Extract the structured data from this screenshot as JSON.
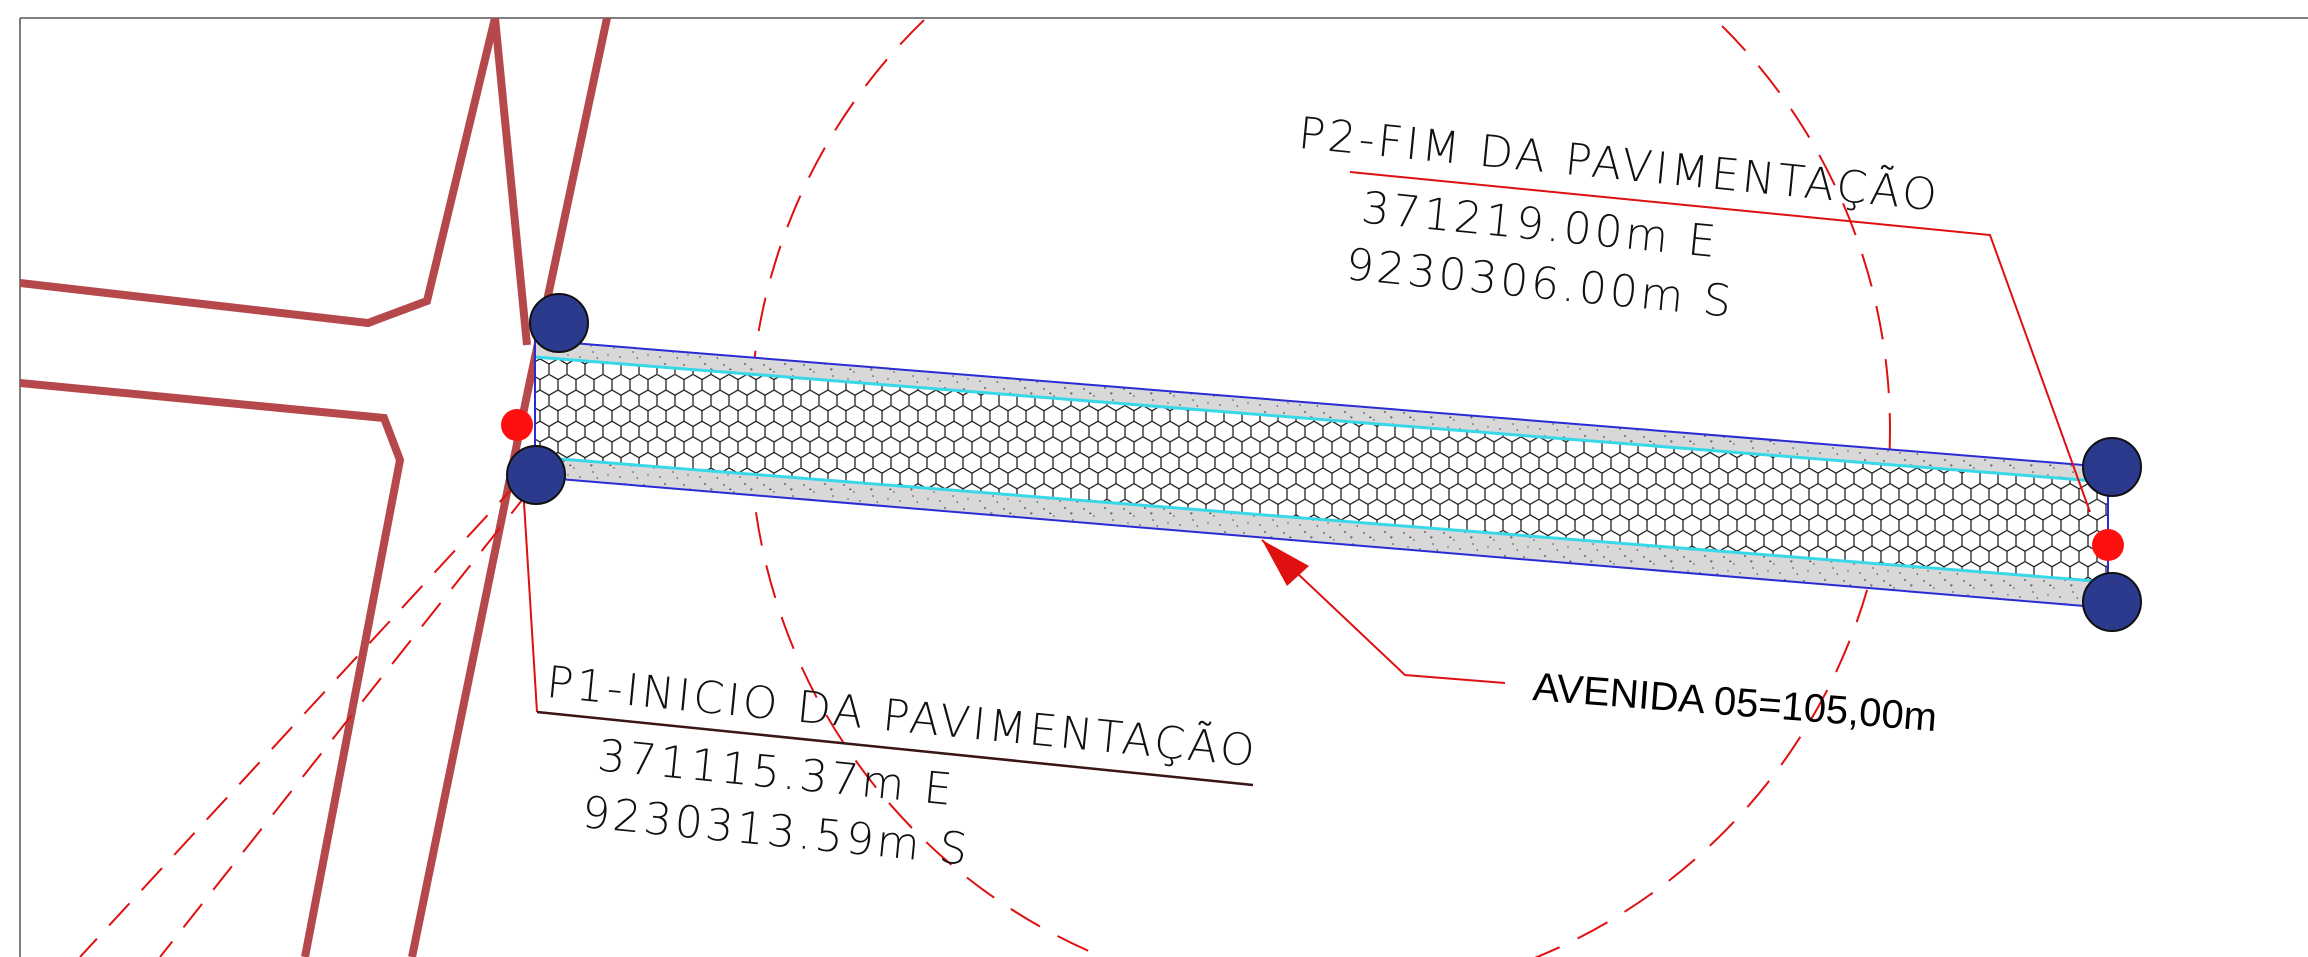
{
  "drawing": {
    "p2": {
      "title": "P2-FIM DA PAVIMENTAÇÃO",
      "east": "371219.00m E",
      "south": "9230306.00m S"
    },
    "p1": {
      "title": "P1-INICIO DA PAVIMENTAÇÃO",
      "east": "371115.37m E",
      "south": "9230313.59m S"
    },
    "road_label": "AVENIDA 05=105,00m"
  },
  "colors": {
    "street_outline": "#b5484b",
    "road_edge": "#2b2bd6",
    "curb_line": "#38d8e8",
    "sidewalk_fill": "#d6d6d6",
    "leader": "#e01010",
    "marker_fill": "#2b3a8c",
    "point_marker": "#ff1010",
    "frame": "#555555"
  }
}
